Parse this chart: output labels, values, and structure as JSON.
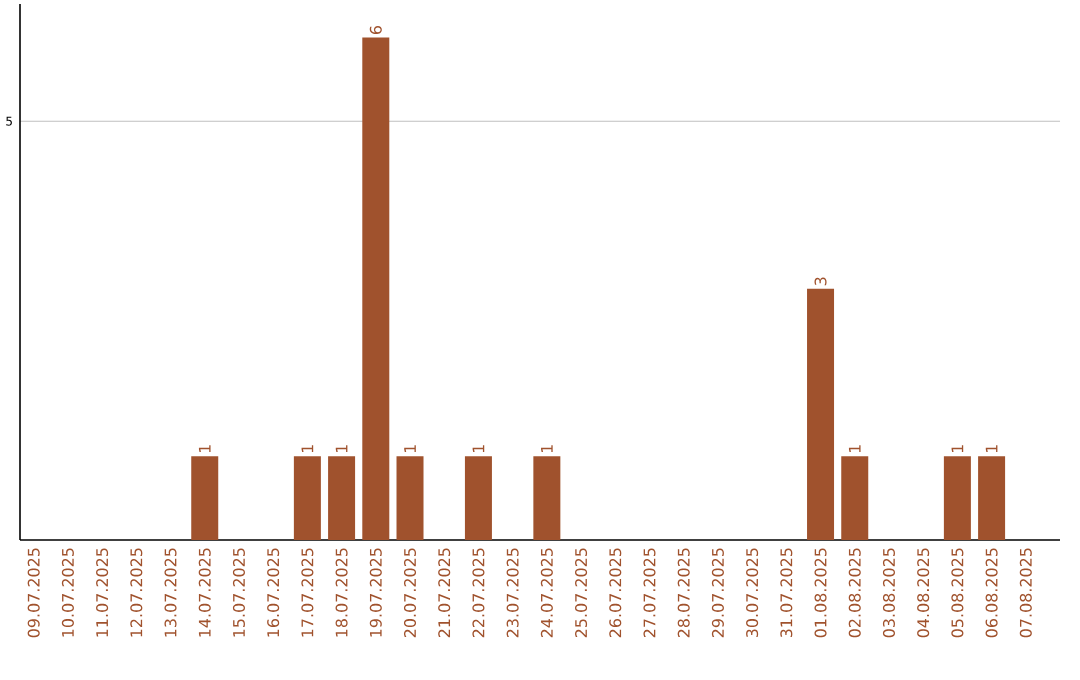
{
  "chart_data": {
    "type": "bar",
    "categories": [
      "09.07.2025",
      "10.07.2025",
      "11.07.2025",
      "12.07.2025",
      "13.07.2025",
      "14.07.2025",
      "15.07.2025",
      "16.07.2025",
      "17.07.2025",
      "18.07.2025",
      "19.07.2025",
      "20.07.2025",
      "21.07.2025",
      "22.07.2025",
      "23.07.2025",
      "24.07.2025",
      "25.07.2025",
      "26.07.2025",
      "27.07.2025",
      "28.07.2025",
      "29.07.2025",
      "30.07.2025",
      "31.07.2025",
      "01.08.2025",
      "02.08.2025",
      "03.08.2025",
      "04.08.2025",
      "05.08.2025",
      "06.08.2025",
      "07.08.2025"
    ],
    "values": [
      0,
      0,
      0,
      0,
      0,
      1,
      0,
      0,
      1,
      1,
      6,
      1,
      0,
      1,
      0,
      1,
      0,
      0,
      0,
      0,
      0,
      0,
      0,
      3,
      1,
      0,
      0,
      1,
      1,
      0
    ],
    "value_labels": [
      null,
      null,
      null,
      null,
      null,
      "1",
      null,
      null,
      "1",
      "1",
      "6",
      "1",
      null,
      "1",
      null,
      "1",
      null,
      null,
      null,
      null,
      null,
      null,
      null,
      "3",
      "1",
      null,
      null,
      "1",
      "1",
      null
    ],
    "color": "#a0522d",
    "ylim": [
      0,
      6.4
    ],
    "yticks": [
      5
    ],
    "grid": "y"
  }
}
